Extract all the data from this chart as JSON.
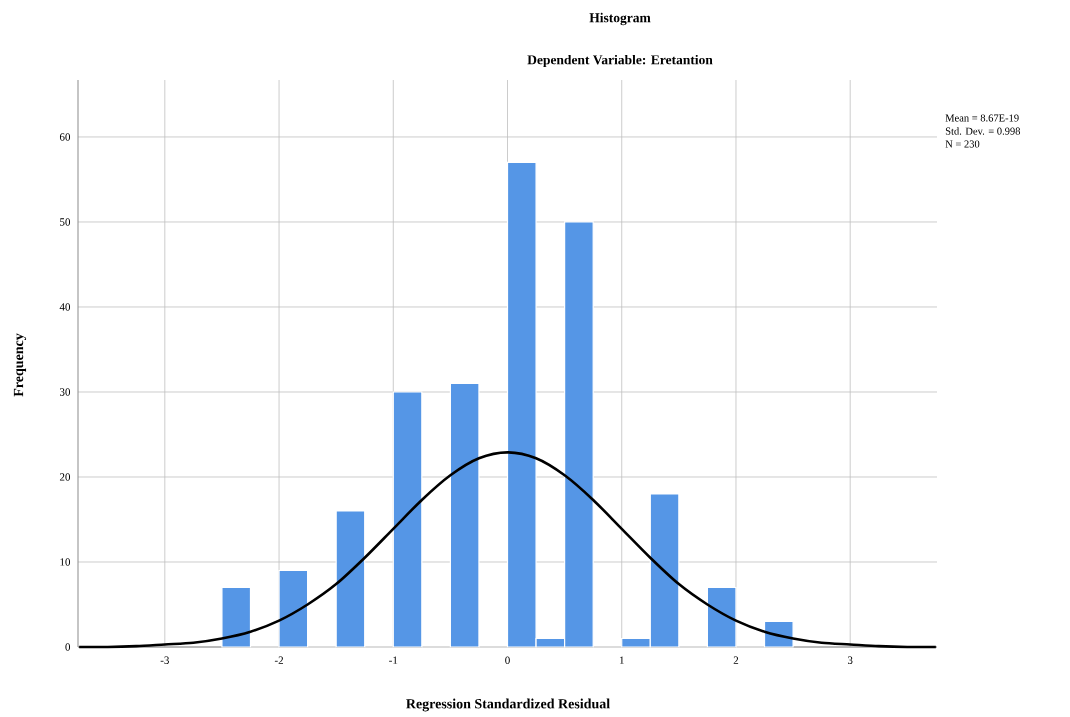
{
  "chart_data": {
    "type": "histogram",
    "title": "Histogram",
    "subtitle": "Dependent Variable: Eretantion",
    "xlabel": "Regression Standardized Residual",
    "ylabel": "Frequency",
    "bins": [
      -2.5,
      -2.25,
      -2.0,
      -1.75,
      -1.5,
      -1.25,
      -1.0,
      -0.75,
      -0.5,
      -0.25,
      0.0,
      0.25,
      0.5,
      0.75,
      1.0,
      1.25,
      1.5,
      1.75,
      2.0,
      2.25,
      2.5
    ],
    "series": [
      {
        "color": "#5596e6",
        "values": [
          7,
          0,
          9,
          0,
          16,
          0,
          30,
          0,
          31,
          0,
          57,
          1,
          50,
          0,
          1,
          18,
          0,
          7,
          0,
          3
        ]
      },
      {
        "type": "line",
        "color": "#000000",
        "x": [
          -3.75,
          -3.5,
          -3.25,
          -3.0,
          -2.75,
          -2.5,
          -2.25,
          -2.0,
          -1.75,
          -1.5,
          -1.25,
          -1.0,
          -0.75,
          -0.5,
          -0.25,
          0.0,
          0.25,
          0.5,
          0.75,
          1.0,
          1.25,
          1.5,
          1.75,
          2.0,
          2.25,
          2.5,
          2.75,
          3.0,
          3.25,
          3.5,
          3.75
        ],
        "values": [
          0.0,
          0.0,
          0.1,
          0.3,
          0.5,
          1.0,
          1.8,
          3.1,
          5.0,
          7.4,
          10.5,
          13.9,
          17.3,
          20.2,
          22.2,
          22.9,
          22.2,
          20.2,
          17.3,
          13.9,
          10.5,
          7.4,
          5.0,
          3.1,
          1.8,
          1.0,
          0.5,
          0.3,
          0.1,
          0.0,
          0.0
        ]
      }
    ],
    "annotations": [
      "Mean = 8.67E-19",
      "Std. Dev. = 0.998",
      "N = 230"
    ],
    "xlim": [
      -3.76,
      3.76
    ],
    "ylim": [
      0,
      66.7
    ],
    "xticks": [
      -3,
      -2,
      -1,
      0,
      1,
      2,
      3
    ],
    "yticks": [
      0,
      10,
      20,
      30,
      40,
      50,
      60
    ],
    "grid": true
  }
}
